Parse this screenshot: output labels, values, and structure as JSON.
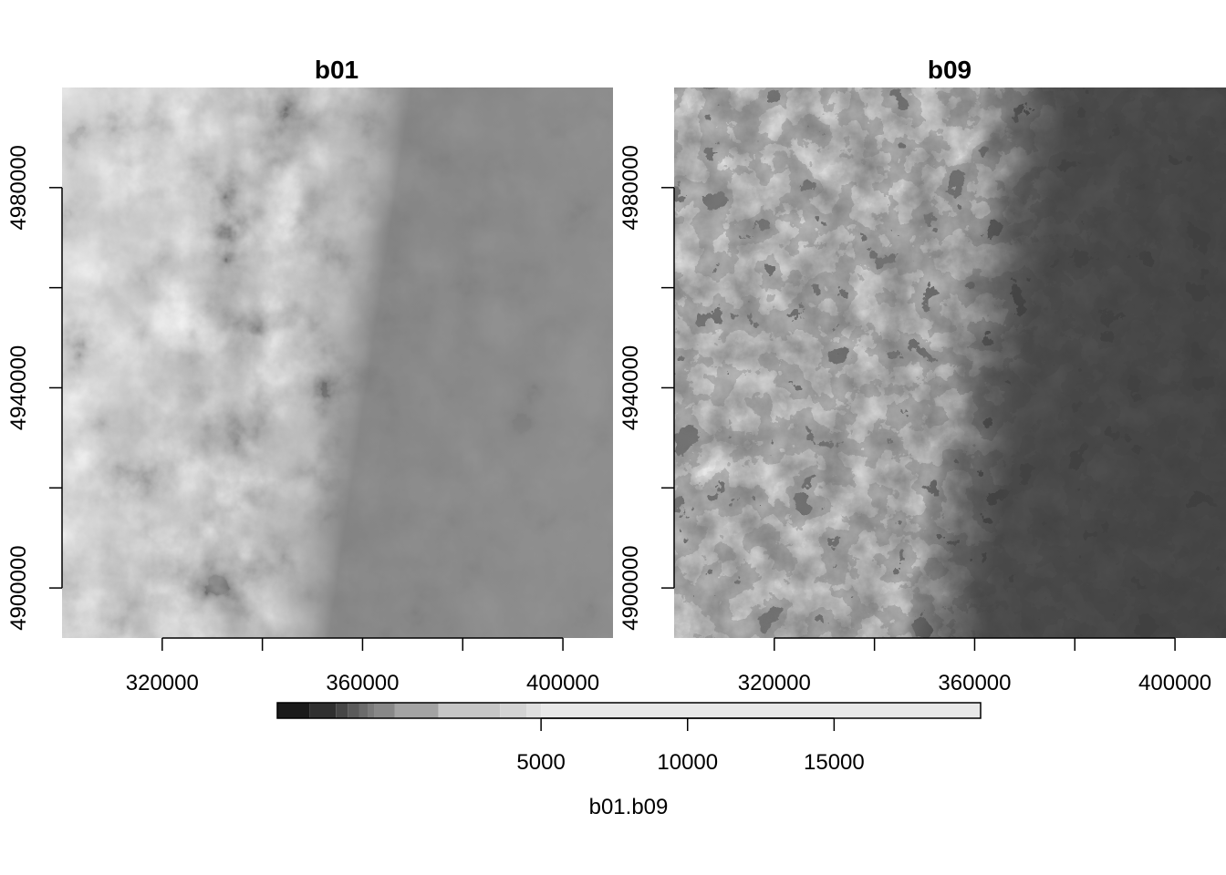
{
  "chart_data": [
    {
      "type": "heatmap",
      "title": "b01",
      "x_ticks": [
        320000,
        360000,
        400000
      ],
      "x_minor_ticks": [
        340000,
        380000
      ],
      "y_ticks": [
        4900000,
        4940000,
        4980000
      ],
      "y_minor_ticks": [
        4920000,
        4960000
      ],
      "xlim": [
        300000,
        410000
      ],
      "ylim": [
        4890000,
        5000000
      ],
      "colormap": "greyscale"
    },
    {
      "type": "heatmap",
      "title": "b09",
      "x_ticks": [
        320000,
        360000,
        400000
      ],
      "x_minor_ticks": [
        340000,
        380000
      ],
      "y_ticks": [
        4900000,
        4940000,
        4980000
      ],
      "y_minor_ticks": [
        4920000,
        4960000
      ],
      "xlim": [
        300000,
        410000
      ],
      "ylim": [
        4890000,
        5000000
      ],
      "colormap": "greyscale"
    }
  ],
  "legend": {
    "title": "b01.b09",
    "ticks": [
      5000,
      10000,
      15000
    ],
    "range": [
      -4000,
      20000
    ],
    "breaks": [
      -4000,
      -2900,
      -2000,
      -1600,
      -1200,
      -900,
      -700,
      0,
      1500,
      3600,
      4500,
      5000,
      20000
    ],
    "colors": [
      "#1a1a1a",
      "#303030",
      "#464646",
      "#5a5a5a",
      "#6b6b6b",
      "#7a7a7a",
      "#888888",
      "#a3a3a3",
      "#c6c6c6",
      "#d3d3d3",
      "#dfdfdf",
      "#e8e8e8"
    ]
  }
}
